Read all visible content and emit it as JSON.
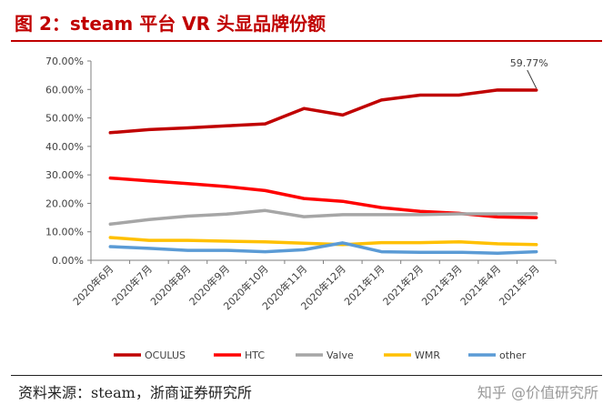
{
  "header": {
    "title": "图 2：steam 平台 VR 头显品牌份额"
  },
  "footer": {
    "source": "资料来源：steam，浙商证券研究所",
    "watermark": "知乎 @价值研究所"
  },
  "chart_data": {
    "type": "line",
    "title": "图 2：steam 平台 VR 头显品牌份额",
    "xlabel": "",
    "ylabel": "",
    "ylim": [
      0,
      70
    ],
    "yticks": [
      0,
      10,
      20,
      30,
      40,
      50,
      60,
      70
    ],
    "ytick_labels": [
      "0.00%",
      "10.00%",
      "20.00%",
      "30.00%",
      "40.00%",
      "50.00%",
      "60.00%",
      "70.00%"
    ],
    "grid": false,
    "legend_position": "bottom",
    "categories": [
      "2020年6月",
      "2020年7月",
      "2020年8月",
      "2020年9月",
      "2020年10月",
      "2020年11月",
      "2020年12月",
      "2021年1月",
      "2021年2月",
      "2021年3月",
      "2021年4月",
      "2021年5月"
    ],
    "series": [
      {
        "name": "OCULUS",
        "color": "#c00000",
        "values": [
          44.8,
          45.9,
          46.5,
          47.2,
          47.9,
          53.3,
          51.0,
          56.3,
          58.0,
          58.0,
          59.8,
          59.77
        ]
      },
      {
        "name": "HTC",
        "color": "#ff0000",
        "values": [
          28.9,
          27.9,
          26.9,
          25.9,
          24.5,
          21.7,
          20.7,
          18.5,
          17.2,
          16.5,
          15.2,
          15.0
        ]
      },
      {
        "name": "Valve",
        "color": "#a6a6a6",
        "values": [
          12.7,
          14.3,
          15.5,
          16.2,
          17.5,
          15.3,
          16.0,
          16.0,
          16.0,
          16.3,
          16.3,
          16.4
        ]
      },
      {
        "name": "WMR",
        "color": "#ffc000",
        "values": [
          8.0,
          7.0,
          7.0,
          6.7,
          6.5,
          6.0,
          5.5,
          6.2,
          6.2,
          6.5,
          5.8,
          5.5
        ]
      },
      {
        "name": "other",
        "color": "#5b9bd5",
        "values": [
          4.8,
          4.2,
          3.5,
          3.5,
          3.0,
          3.7,
          6.1,
          3.0,
          2.8,
          2.8,
          2.5,
          3.0
        ]
      }
    ],
    "annotations": [
      {
        "series": "OCULUS",
        "category": "2021年5月",
        "text": "59.77%"
      }
    ]
  }
}
